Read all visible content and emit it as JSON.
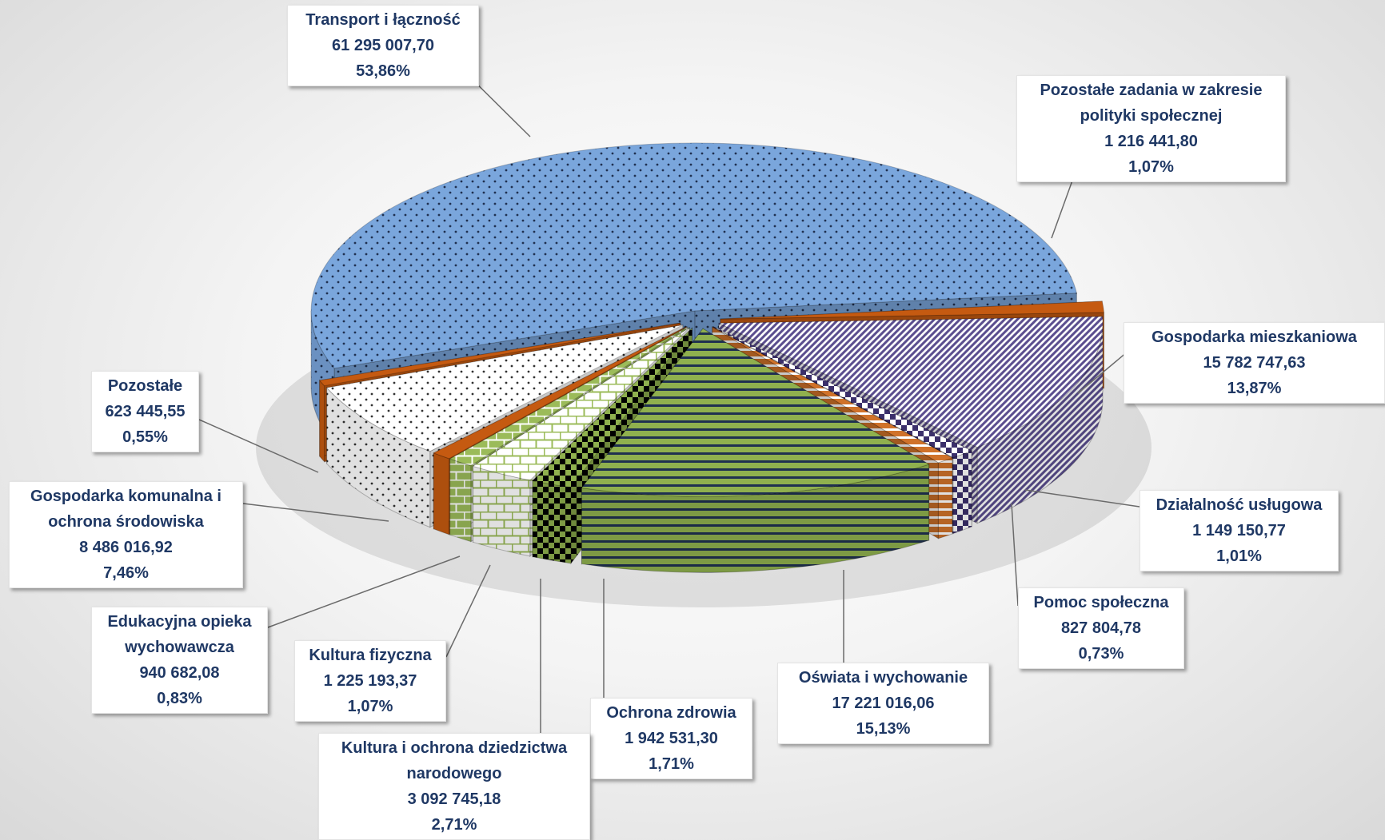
{
  "chart_data": {
    "type": "pie3d",
    "categories": [
      "Transport i łączność",
      "Pozostałe zadania w zakresie polityki społecznej",
      "Gospodarka mieszkaniowa",
      "Działalność usługowa",
      "Pomoc społeczna",
      "Oświata i wychowanie",
      "Ochrona zdrowia",
      "Kultura i ochrona dziedzictwa narodowego",
      "Kultura fizyczna",
      "Edukacyjna opieka wychowawcza",
      "Gospodarka komunalna i ochrona środowiska",
      "Pozostałe"
    ],
    "values": [
      61295007.7,
      1216441.8,
      15782747.63,
      1149150.77,
      827804.78,
      17221016.06,
      1942531.3,
      3092745.18,
      1225193.37,
      940682.08,
      8486016.92,
      623445.55
    ],
    "value_labels": [
      "61 295 007,70",
      "1 216 441,80",
      "15 782 747,63",
      "1 149 150,77",
      "827 804,78",
      "17 221 016,06",
      "1 942 531,30",
      "3 092 745,18",
      "1 225 193,37",
      "940 682,08",
      "8 486 016,92",
      "623 445,55"
    ],
    "percents": [
      53.86,
      1.07,
      13.87,
      1.01,
      0.73,
      15.13,
      1.71,
      2.71,
      1.07,
      0.83,
      7.46,
      0.55
    ],
    "percent_labels": [
      "53,86%",
      "1,07%",
      "13,87%",
      "1,01%",
      "0,73%",
      "15,13%",
      "1,71%",
      "2,71%",
      "1,07%",
      "0,83%",
      "7,46%",
      "0,55%"
    ],
    "colors": [
      "#7aa6dc",
      "#c55a11",
      "#ffffff",
      "#3b2f6b",
      "#d0722a",
      "#8fb04e",
      "#8fb04e",
      "#ffffff",
      "#9bbb59",
      "#c55a11",
      "#ffffff",
      "#c55a11"
    ],
    "pattern_colors": [
      "#1f3050",
      "#c55a11",
      "#5b4e8f",
      "#ffffff",
      "#ffffff",
      "#1f3050",
      "#000000",
      "#9bbb59",
      "#ffffff",
      "#c55a11",
      "#333333",
      "#c55a11"
    ],
    "patterns": [
      "dots",
      "solid",
      "stripes-d",
      "checker",
      "stripes-h",
      "stripes-h",
      "checker",
      "bricks",
      "bricks",
      "solid",
      "dots",
      "solid"
    ]
  }
}
